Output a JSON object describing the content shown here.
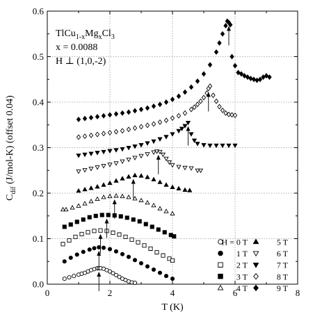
{
  "chart_data": {
    "type": "scatter",
    "title": "",
    "xlabel": "T (K)",
    "ylabel_main": "C",
    "ylabel_sub": "dif",
    "ylabel_rest": " (J/mol-K) (offset 0.04)",
    "xlim": [
      0,
      8
    ],
    "ylim": [
      0,
      0.6
    ],
    "x_ticks": [
      0,
      2,
      4,
      6,
      8
    ],
    "y_ticks": [
      0.0,
      0.1,
      0.2,
      0.3,
      0.4,
      0.5,
      0.6
    ],
    "x_tick_labels": [
      "0",
      "2",
      "4",
      "6",
      "8"
    ],
    "y_tick_labels": [
      "0.0",
      "0.1",
      "0.2",
      "0.3",
      "0.4",
      "0.5",
      "0.6"
    ],
    "grid": true,
    "legend_placement": "bottom-right",
    "annotation": {
      "line1_parts": [
        "TlCu",
        "1-x",
        "Mg",
        "x",
        "Cl",
        "3"
      ],
      "line2": "x = 0.0088",
      "line3": "H ⊥ (1,0,-2)"
    },
    "series": [
      {
        "name": "H = 0 T",
        "marker": "circle-open",
        "peak_x": 1.65,
        "x": [
          0.55,
          0.7,
          0.85,
          1.0,
          1.1,
          1.2,
          1.3,
          1.4,
          1.5,
          1.6,
          1.65,
          1.7,
          1.8,
          1.9,
          2.0,
          2.1,
          2.2,
          2.3,
          2.4,
          2.5,
          2.6,
          2.7,
          2.8
        ],
        "y": [
          0.012,
          0.015,
          0.018,
          0.021,
          0.023,
          0.025,
          0.028,
          0.031,
          0.033,
          0.035,
          0.035,
          0.035,
          0.034,
          0.031,
          0.028,
          0.024,
          0.02,
          0.016,
          0.012,
          0.009,
          0.006,
          0.004,
          0.003
        ]
      },
      {
        "name": "1 T",
        "marker": "circle-filled",
        "peak_x": 1.65,
        "x": [
          0.55,
          0.75,
          0.95,
          1.15,
          1.35,
          1.5,
          1.65,
          1.8,
          2.0,
          2.2,
          2.4,
          2.6,
          2.8,
          3.0,
          3.2,
          3.4,
          3.6,
          3.8,
          4.0
        ],
        "y": [
          0.05,
          0.058,
          0.065,
          0.071,
          0.076,
          0.079,
          0.081,
          0.08,
          0.077,
          0.072,
          0.066,
          0.06,
          0.053,
          0.046,
          0.039,
          0.032,
          0.025,
          0.018,
          0.012
        ]
      },
      {
        "name": "2 T",
        "marker": "square-open",
        "peak_x": 1.7,
        "x": [
          0.5,
          0.7,
          0.9,
          1.1,
          1.3,
          1.5,
          1.7,
          1.9,
          2.1,
          2.3,
          2.5,
          2.7,
          2.9,
          3.1,
          3.3,
          3.5,
          3.7,
          3.9,
          4.0
        ],
        "y": [
          0.088,
          0.096,
          0.104,
          0.11,
          0.114,
          0.117,
          0.118,
          0.117,
          0.113,
          0.109,
          0.104,
          0.098,
          0.092,
          0.085,
          0.078,
          0.07,
          0.063,
          0.056,
          0.052
        ]
      },
      {
        "name": "3 T",
        "marker": "square-filled",
        "peak_x": 1.9,
        "x": [
          0.55,
          0.75,
          0.95,
          1.15,
          1.35,
          1.55,
          1.75,
          1.95,
          2.15,
          2.35,
          2.55,
          2.75,
          2.95,
          3.15,
          3.35,
          3.55,
          3.75,
          3.95,
          4.05
        ],
        "y": [
          0.126,
          0.131,
          0.137,
          0.142,
          0.147,
          0.15,
          0.152,
          0.152,
          0.151,
          0.149,
          0.146,
          0.142,
          0.138,
          0.132,
          0.126,
          0.12,
          0.114,
          0.108,
          0.105
        ]
      },
      {
        "name": "4 T",
        "marker": "triangle-open",
        "peak_x": 2.15,
        "x": [
          0.5,
          0.6,
          0.8,
          1.0,
          1.2,
          1.4,
          1.6,
          1.8,
          2.0,
          2.2,
          2.4,
          2.6,
          2.8,
          3.0,
          3.2,
          3.4,
          3.6,
          3.8,
          4.0
        ],
        "y": [
          0.164,
          0.164,
          0.168,
          0.172,
          0.177,
          0.182,
          0.187,
          0.191,
          0.193,
          0.194,
          0.193,
          0.191,
          0.188,
          0.184,
          0.179,
          0.173,
          0.166,
          0.16,
          0.155
        ]
      },
      {
        "name": "5 T",
        "marker": "triangle-filled",
        "peak_x": 2.75,
        "x": [
          1.0,
          1.2,
          1.4,
          1.6,
          1.8,
          2.0,
          2.2,
          2.4,
          2.6,
          2.8,
          3.0,
          3.2,
          3.4,
          3.6,
          3.8,
          4.0,
          4.2,
          4.4,
          4.55
        ],
        "y": [
          0.205,
          0.208,
          0.211,
          0.214,
          0.218,
          0.222,
          0.227,
          0.232,
          0.236,
          0.239,
          0.238,
          0.235,
          0.23,
          0.224,
          0.218,
          0.213,
          0.21,
          0.207,
          0.206
        ]
      },
      {
        "name": "6 T",
        "marker": "triangle-down-open",
        "peak_x": 3.55,
        "x": [
          1.0,
          1.2,
          1.4,
          1.6,
          1.8,
          2.0,
          2.2,
          2.4,
          2.6,
          2.8,
          3.0,
          3.2,
          3.4,
          3.5,
          3.6,
          3.7,
          3.8,
          3.9,
          4.0,
          4.2,
          4.4,
          4.6,
          4.8,
          4.9
        ],
        "y": [
          0.248,
          0.251,
          0.254,
          0.257,
          0.26,
          0.263,
          0.266,
          0.27,
          0.274,
          0.278,
          0.282,
          0.286,
          0.29,
          0.292,
          0.291,
          0.285,
          0.276,
          0.268,
          0.262,
          0.258,
          0.256,
          0.255,
          0.25,
          0.25
        ]
      },
      {
        "name": "7 T",
        "marker": "triangle-down-filled",
        "peak_x": 4.5,
        "x": [
          1.0,
          1.2,
          1.4,
          1.6,
          1.8,
          2.0,
          2.2,
          2.4,
          2.6,
          2.8,
          3.0,
          3.2,
          3.4,
          3.6,
          3.8,
          4.0,
          4.2,
          4.3,
          4.4,
          4.5,
          4.6,
          4.7,
          4.8,
          5.0,
          5.2,
          5.4,
          5.6,
          5.8,
          6.0
        ],
        "y": [
          0.283,
          0.285,
          0.287,
          0.289,
          0.291,
          0.293,
          0.295,
          0.297,
          0.3,
          0.303,
          0.306,
          0.31,
          0.314,
          0.319,
          0.324,
          0.33,
          0.337,
          0.342,
          0.348,
          0.355,
          0.33,
          0.316,
          0.309,
          0.306,
          0.305,
          0.305,
          0.305,
          0.305,
          0.305
        ]
      },
      {
        "name": "8 T",
        "marker": "diamond-open",
        "peak_x": 5.15,
        "x": [
          1.0,
          1.2,
          1.4,
          1.6,
          1.8,
          2.0,
          2.2,
          2.4,
          2.6,
          2.8,
          3.0,
          3.2,
          3.4,
          3.6,
          3.8,
          4.0,
          4.2,
          4.4,
          4.6,
          4.7,
          4.8,
          4.9,
          5.0,
          5.1,
          5.15,
          5.2,
          5.3,
          5.4,
          5.5,
          5.6,
          5.7,
          5.8,
          5.9,
          6.0
        ],
        "y": [
          0.323,
          0.325,
          0.327,
          0.329,
          0.331,
          0.333,
          0.335,
          0.337,
          0.34,
          0.343,
          0.346,
          0.349,
          0.352,
          0.356,
          0.36,
          0.365,
          0.37,
          0.376,
          0.384,
          0.389,
          0.395,
          0.402,
          0.41,
          0.42,
          0.43,
          0.435,
          0.415,
          0.402,
          0.39,
          0.382,
          0.376,
          0.373,
          0.372,
          0.371
        ]
      },
      {
        "name": "9 T",
        "marker": "diamond-filled",
        "peak_x": 5.8,
        "x": [
          1.0,
          1.2,
          1.4,
          1.6,
          1.8,
          2.0,
          2.2,
          2.4,
          2.6,
          2.8,
          3.0,
          3.2,
          3.4,
          3.6,
          3.8,
          4.0,
          4.2,
          4.4,
          4.6,
          4.8,
          5.0,
          5.2,
          5.4,
          5.5,
          5.6,
          5.7,
          5.75,
          5.8,
          5.85,
          5.9,
          6.0,
          6.1,
          6.2,
          6.3,
          6.4,
          6.5,
          6.6,
          6.7,
          6.8,
          6.9,
          7.0,
          7.1
        ],
        "y": [
          0.362,
          0.364,
          0.366,
          0.368,
          0.37,
          0.372,
          0.374,
          0.376,
          0.378,
          0.381,
          0.384,
          0.387,
          0.391,
          0.395,
          0.4,
          0.406,
          0.413,
          0.422,
          0.433,
          0.446,
          0.462,
          0.482,
          0.51,
          0.53,
          0.55,
          0.568,
          0.578,
          0.575,
          0.57,
          0.5,
          0.48,
          0.465,
          0.462,
          0.458,
          0.455,
          0.452,
          0.45,
          0.448,
          0.45,
          0.455,
          0.458,
          0.455
        ]
      }
    ]
  }
}
